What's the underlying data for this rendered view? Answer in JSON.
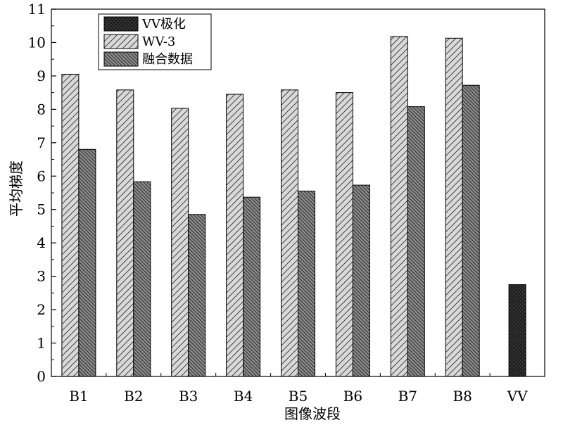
{
  "chart_data": {
    "type": "bar",
    "categories": [
      "B1",
      "B2",
      "B3",
      "B4",
      "B5",
      "B6",
      "B7",
      "B8",
      "VV"
    ],
    "series": [
      {
        "name": "VV极化",
        "values": [
          null,
          null,
          null,
          null,
          null,
          null,
          null,
          null,
          2.75
        ],
        "color": "#333333",
        "pattern": "crosshatch"
      },
      {
        "name": "WV-3",
        "values": [
          9.05,
          8.58,
          8.03,
          8.45,
          8.58,
          8.5,
          10.18,
          10.13,
          null
        ],
        "color": "#d6d6d6",
        "pattern": "diagonal"
      },
      {
        "name": "融合数据",
        "values": [
          6.8,
          5.83,
          4.85,
          5.37,
          5.55,
          5.73,
          8.08,
          8.72,
          null
        ],
        "color": "#8c8c8c",
        "pattern": "dense-diagonal"
      }
    ],
    "xlabel": "图像波段",
    "ylabel": "平均梯度",
    "ylim": [
      0,
      11
    ],
    "yticks": [
      0,
      1,
      2,
      3,
      4,
      5,
      6,
      7,
      8,
      9,
      10,
      11
    ],
    "grid": false,
    "legend_position": "top-left"
  }
}
